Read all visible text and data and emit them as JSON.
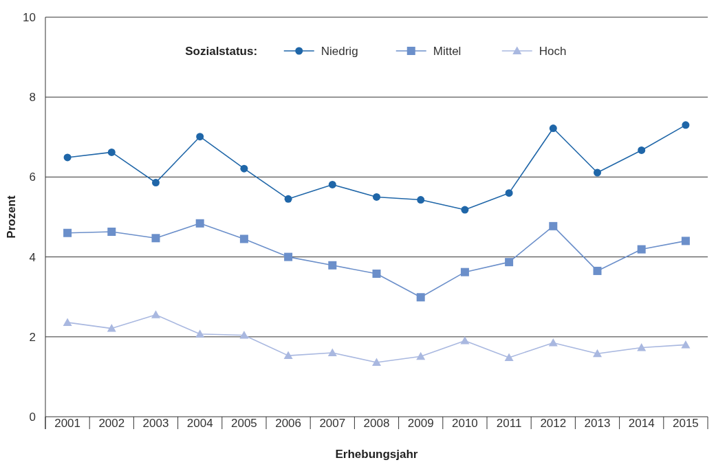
{
  "chart_data": {
    "type": "line",
    "xlabel": "Erhebungsjahr",
    "ylabel": "Prozent",
    "legend_title": "Sozialstatus:",
    "legend": "top",
    "grid": "y",
    "line_style": "solid",
    "categories": [
      "2001",
      "2002",
      "2003",
      "2004",
      "2005",
      "2006",
      "2007",
      "2008",
      "2009",
      "2010",
      "2011",
      "2012",
      "2013",
      "2014",
      "2015"
    ],
    "ylim": [
      0,
      10
    ],
    "yticks": [
      0,
      2,
      4,
      6,
      8,
      10
    ],
    "series": [
      {
        "name": "Niedrig",
        "color": "#1f66a8",
        "marker": "circle",
        "values": [
          6.49,
          6.62,
          5.86,
          7.01,
          6.21,
          5.45,
          5.81,
          5.5,
          5.43,
          5.18,
          5.6,
          7.22,
          6.11,
          6.67,
          7.3
        ]
      },
      {
        "name": "Mittel",
        "color": "#6b8fca",
        "marker": "square",
        "values": [
          4.6,
          4.63,
          4.47,
          4.84,
          4.45,
          4.0,
          3.79,
          3.58,
          2.99,
          3.62,
          3.87,
          4.77,
          3.65,
          4.19,
          4.4
        ]
      },
      {
        "name": "Hoch",
        "color": "#a9b8e0",
        "marker": "triangle",
        "values": [
          2.36,
          2.21,
          2.55,
          2.07,
          2.04,
          1.53,
          1.6,
          1.36,
          1.51,
          1.9,
          1.48,
          1.85,
          1.58,
          1.73,
          1.8
        ]
      }
    ]
  }
}
